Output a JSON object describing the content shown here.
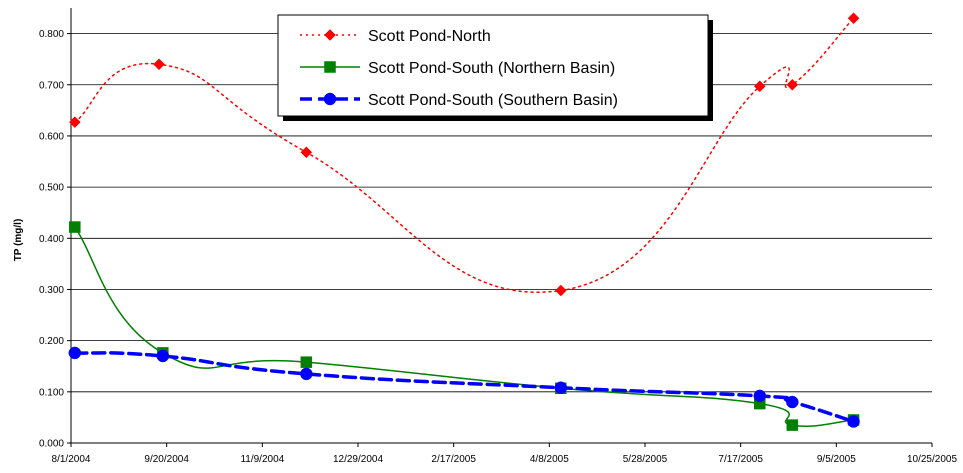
{
  "chart_data": {
    "type": "line",
    "title": "",
    "xlabel": "",
    "ylabel": "TP (mg/l)",
    "x_axis": {
      "type": "date",
      "range": [
        "8/1/2004",
        "10/25/2005"
      ],
      "tick_labels": [
        "8/1/2004",
        "9/20/2004",
        "11/9/2004",
        "12/29/2004",
        "2/17/2005",
        "4/8/2005",
        "5/28/2005",
        "7/17/2005",
        "9/5/2005",
        "10/25/2005"
      ]
    },
    "y_axis": {
      "range": [
        0,
        0.85
      ],
      "tick_labels": [
        "0.000",
        "0.100",
        "0.200",
        "0.300",
        "0.400",
        "0.500",
        "0.600",
        "0.700",
        "0.800"
      ]
    },
    "grid": "horizontal",
    "legend_position": "top-center",
    "series": [
      {
        "name": "Scott Pond-North",
        "color": "#ff0000",
        "marker": "diamond",
        "line_style": "dotted",
        "points": [
          {
            "x": "8/3/2004",
            "y": 0.627
          },
          {
            "x": "9/16/2004",
            "y": 0.74
          },
          {
            "x": "12/2/2004",
            "y": 0.568
          },
          {
            "x": "4/14/2005",
            "y": 0.298
          },
          {
            "x": "7/27/2005",
            "y": 0.697
          },
          {
            "x": "8/13/2005",
            "y": 0.7
          },
          {
            "x": "9/14/2005",
            "y": 0.83
          }
        ]
      },
      {
        "name": "Scott Pond-South (Northern Basin)",
        "color": "#008000",
        "marker": "square",
        "line_style": "solid",
        "points": [
          {
            "x": "8/3/2004",
            "y": 0.422
          },
          {
            "x": "9/18/2004",
            "y": 0.176
          },
          {
            "x": "12/2/2004",
            "y": 0.158
          },
          {
            "x": "4/14/2005",
            "y": 0.107
          },
          {
            "x": "7/27/2005",
            "y": 0.077
          },
          {
            "x": "8/13/2005",
            "y": 0.035
          },
          {
            "x": "9/14/2005",
            "y": 0.045
          }
        ]
      },
      {
        "name": "Scott Pond-South (Southern Basin)",
        "color": "#0000ff",
        "marker": "circle",
        "line_style": "dashed",
        "points": [
          {
            "x": "8/3/2004",
            "y": 0.176
          },
          {
            "x": "9/18/2004",
            "y": 0.17
          },
          {
            "x": "12/2/2004",
            "y": 0.135
          },
          {
            "x": "4/14/2005",
            "y": 0.108
          },
          {
            "x": "7/27/2005",
            "y": 0.092
          },
          {
            "x": "8/13/2005",
            "y": 0.08
          },
          {
            "x": "9/14/2005",
            "y": 0.042
          }
        ]
      }
    ]
  }
}
